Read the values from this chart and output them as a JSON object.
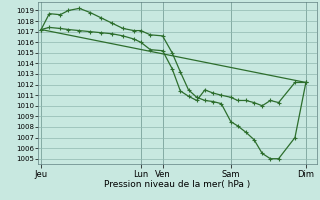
{
  "xlabel": "Pression niveau de la mer( hPa )",
  "bg_color": "#c8e8e0",
  "grid_color": "#90b8b0",
  "line_color": "#2d6e2d",
  "ylim": [
    1004.5,
    1019.8
  ],
  "yticks": [
    1005,
    1006,
    1007,
    1008,
    1009,
    1010,
    1011,
    1012,
    1013,
    1014,
    1015,
    1016,
    1017,
    1018,
    1019
  ],
  "xtick_labels": [
    "Jeu",
    "Lun",
    "Ven",
    "Sam",
    "Dim"
  ],
  "xtick_pos": [
    0.0,
    0.365,
    0.445,
    0.695,
    0.97
  ],
  "line1_x": [
    0.0,
    0.97
  ],
  "line1_y": [
    1017.2,
    1012.2
  ],
  "line2_x": [
    0.0,
    0.03,
    0.07,
    0.1,
    0.14,
    0.18,
    0.22,
    0.26,
    0.3,
    0.34,
    0.365,
    0.4,
    0.445,
    0.48,
    0.51,
    0.54,
    0.57,
    0.6,
    0.63,
    0.66,
    0.695,
    0.72,
    0.75,
    0.78,
    0.81,
    0.84,
    0.87,
    0.93,
    0.97
  ],
  "line2_y": [
    1017.2,
    1018.7,
    1018.6,
    1019.0,
    1019.2,
    1018.8,
    1018.3,
    1017.8,
    1017.3,
    1017.1,
    1017.1,
    1016.7,
    1016.6,
    1015.0,
    1013.2,
    1011.5,
    1010.8,
    1010.5,
    1010.4,
    1010.2,
    1008.5,
    1008.1,
    1007.5,
    1006.8,
    1005.5,
    1005.0,
    1005.0,
    1007.0,
    1012.2
  ],
  "line3_x": [
    0.0,
    0.03,
    0.07,
    0.1,
    0.14,
    0.18,
    0.22,
    0.26,
    0.3,
    0.34,
    0.365,
    0.4,
    0.445,
    0.48,
    0.51,
    0.54,
    0.57,
    0.6,
    0.63,
    0.66,
    0.695,
    0.72,
    0.75,
    0.78,
    0.81,
    0.84,
    0.87,
    0.93,
    0.97
  ],
  "line3_y": [
    1017.2,
    1017.4,
    1017.3,
    1017.2,
    1017.1,
    1017.0,
    1016.9,
    1016.8,
    1016.6,
    1016.3,
    1016.0,
    1015.3,
    1015.2,
    1013.5,
    1011.4,
    1010.9,
    1010.5,
    1011.5,
    1011.2,
    1011.0,
    1010.8,
    1010.5,
    1010.5,
    1010.3,
    1010.0,
    1010.5,
    1010.3,
    1012.2,
    1012.2
  ]
}
